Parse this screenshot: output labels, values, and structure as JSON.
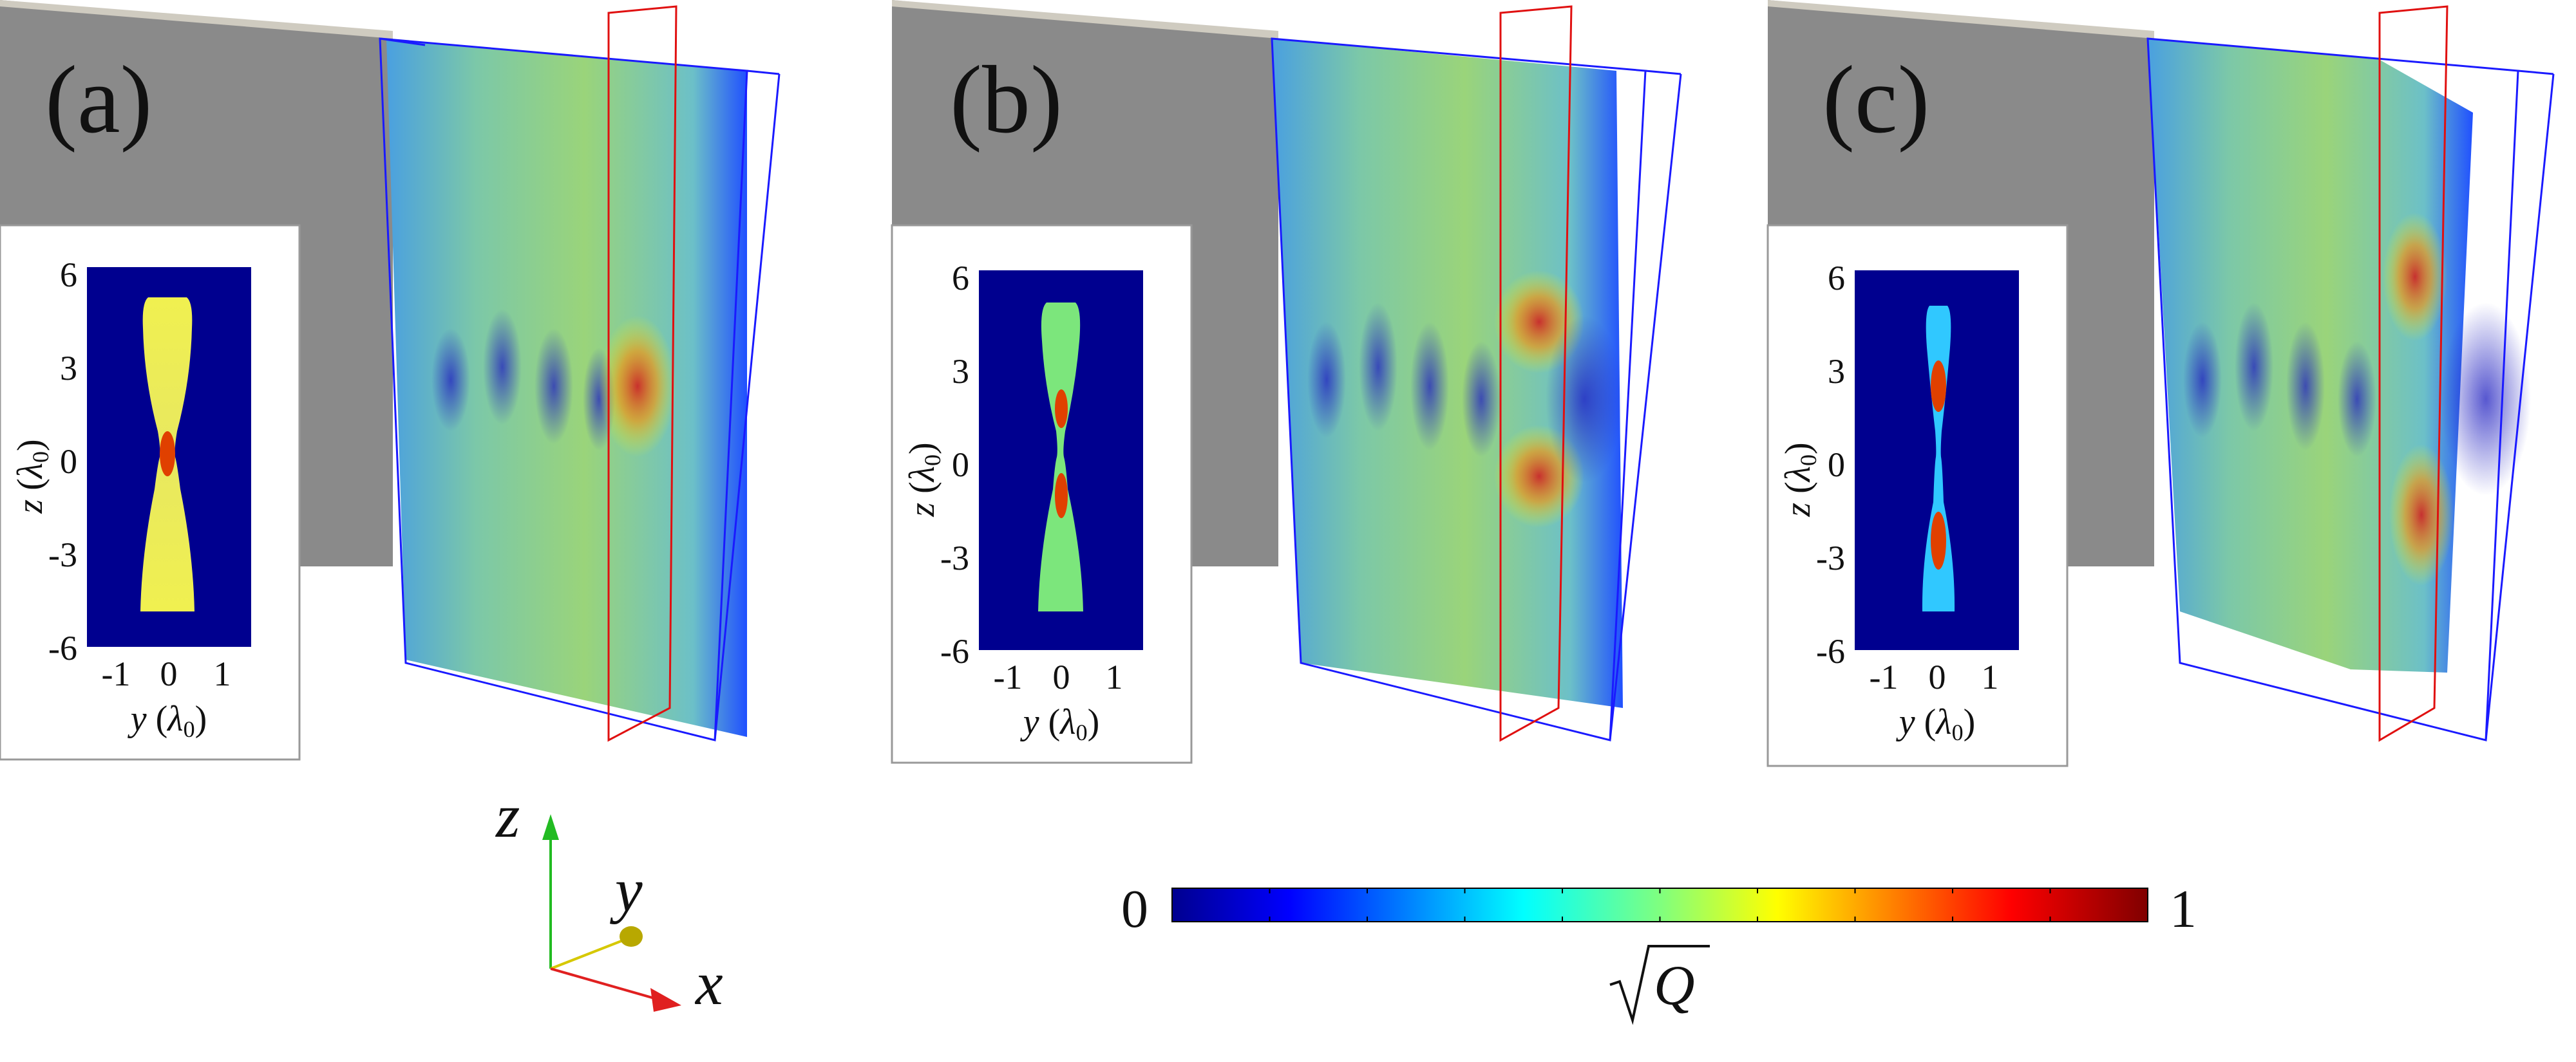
{
  "figure": {
    "panels": [
      {
        "label": "(a)",
        "inset": {
          "z_ticks": [
            "6",
            "3",
            "0",
            "-3",
            "-6"
          ],
          "y_ticks": [
            "-1",
            "0",
            "1"
          ],
          "z_label_var": "z",
          "z_label_unit": "λ",
          "z_label_sub": "0",
          "y_label_var": "y",
          "y_label_unit": "λ",
          "y_label_sub": "0",
          "neck_width_fraction": 0.18
        }
      },
      {
        "label": "(b)",
        "inset": {
          "z_ticks": [
            "6",
            "3",
            "0",
            "-3",
            "-6"
          ],
          "y_ticks": [
            "-1",
            "0",
            "1"
          ],
          "z_label_var": "z",
          "z_label_unit": "λ",
          "z_label_sub": "0",
          "y_label_var": "y",
          "y_label_unit": "λ",
          "y_label_sub": "0",
          "neck_width_fraction": 0.12
        }
      },
      {
        "label": "(c)",
        "inset": {
          "z_ticks": [
            "6",
            "3",
            "0",
            "-3",
            "-6"
          ],
          "y_ticks": [
            "-1",
            "0",
            "1"
          ],
          "z_label_var": "z",
          "z_label_unit": "λ",
          "z_label_sub": "0",
          "y_label_var": "y",
          "y_label_unit": "λ",
          "y_label_sub": "0",
          "neck_width_fraction": 0.06
        }
      }
    ],
    "axes_triad": {
      "x": "x",
      "y": "y",
      "z": "z",
      "x_color": "#e02020",
      "y_color": "#d6c800",
      "z_color": "#22bb22"
    },
    "colorbar": {
      "min_label": "0",
      "max_label": "1",
      "quantity_label": "Q",
      "colormap": "jet",
      "range": [
        0,
        1
      ]
    },
    "colors": {
      "background": "#ffffff",
      "wall": "#8a8a8a",
      "box_edge": "#1a1aff",
      "slice_edge": "#e01010",
      "inset_bg": "#00008f"
    }
  }
}
